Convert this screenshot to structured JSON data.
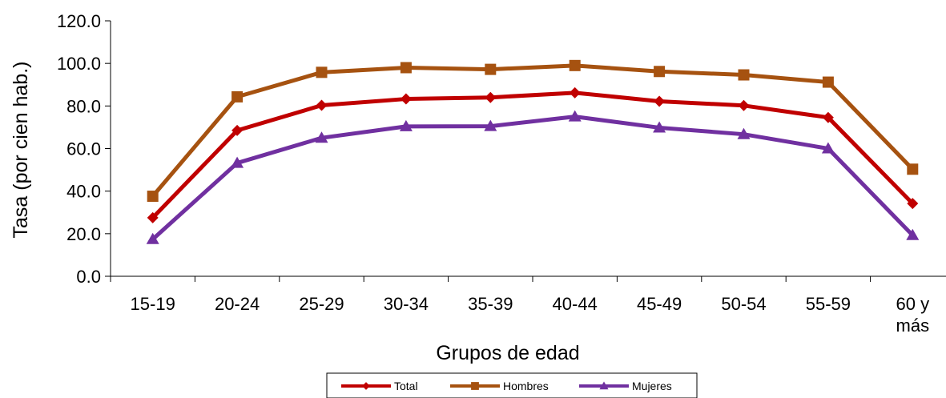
{
  "chart_data": {
    "type": "line",
    "title": "",
    "xlabel": "Grupos de edad",
    "ylabel": "Tasa (por cien hab.)",
    "categories": [
      [
        "15-19"
      ],
      [
        "20-24"
      ],
      [
        "25-29"
      ],
      [
        "30-34"
      ],
      [
        "35-39"
      ],
      [
        "40-44"
      ],
      [
        "45-49"
      ],
      [
        "50-54"
      ],
      [
        "55-59"
      ],
      [
        "60 y",
        "más"
      ]
    ],
    "ylim": [
      0,
      120
    ],
    "yticks": [
      "0.0",
      "20.0",
      "40.0",
      "60.0",
      "80.0",
      "100.0",
      "120.0"
    ],
    "grid": false,
    "legend_position": "bottom",
    "series": [
      {
        "name": "Total",
        "color": "#C00000",
        "marker": "diamond",
        "values": [
          27.5,
          68.5,
          80.3,
          83.3,
          84.0,
          86.2,
          82.2,
          80.2,
          74.6,
          34.2
        ]
      },
      {
        "name": "Hombres",
        "color": "#A65210",
        "marker": "square",
        "values": [
          37.6,
          84.3,
          95.8,
          98.0,
          97.2,
          99.0,
          96.2,
          94.6,
          91.2,
          50.3
        ]
      },
      {
        "name": "Mujeres",
        "color": "#7030A0",
        "marker": "triangle",
        "values": [
          17.4,
          53.2,
          65.0,
          70.4,
          70.5,
          75.0,
          69.8,
          66.7,
          60.0,
          19.3
        ]
      }
    ]
  }
}
